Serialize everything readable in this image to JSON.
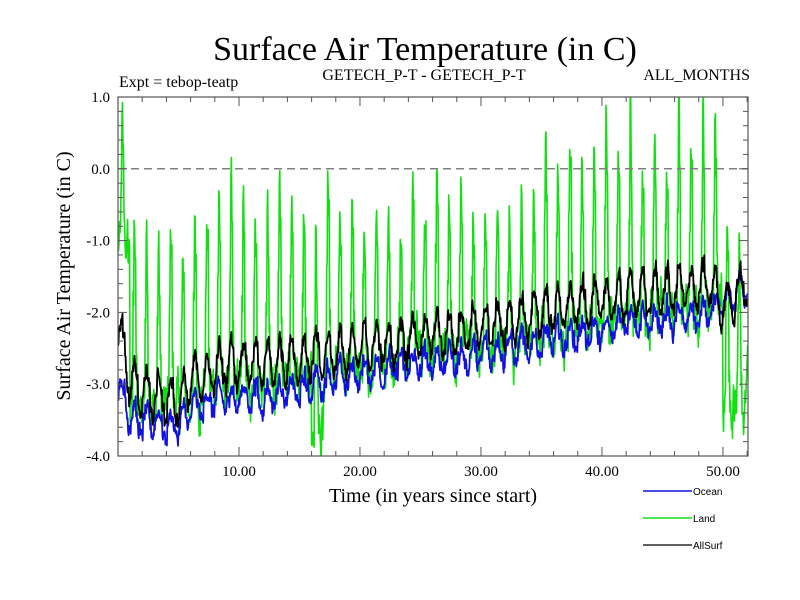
{
  "chart_data": {
    "type": "line",
    "title": "Surface Air Temperature (in C)",
    "subtitle_left": "Expt = tebop-teatp",
    "subtitle_center": "GETECH_P-T - GETECH_P-T",
    "subtitle_right": "ALL_MONTHS",
    "xlabel": "Time (in years since start)",
    "ylabel": "Surface Air Temperature (in C)",
    "xlim": [
      0,
      52.07
    ],
    "ylim": [
      -4.0,
      1.0
    ],
    "xticks": [
      10,
      20,
      30,
      40,
      50
    ],
    "xtick_labels": [
      "10.00",
      "20.00",
      "30.00",
      "40.00",
      "50.00"
    ],
    "xminor_step": 2,
    "yticks": [
      1.0,
      0.0,
      -1.0,
      -2.0,
      -3.0,
      -4.0
    ],
    "ytick_labels": [
      "1.0",
      "0.0",
      "-1.0",
      "-2.0",
      "-3.0",
      "-4.0"
    ],
    "yminor_step": 0.2,
    "reference_line": {
      "y": 0.0,
      "style": "dashed",
      "color": "#808080"
    },
    "legend": {
      "placement": "bottom-right"
    },
    "sampling": "monthly",
    "series": [
      {
        "name": "Ocean",
        "color": "#1010e0",
        "yearly_mean": [
          -2.95,
          -3.45,
          -3.55,
          -3.5,
          -3.6,
          -3.6,
          -3.35,
          -3.3,
          -3.2,
          -3.2,
          -3.2,
          -3.15,
          -3.2,
          -3.15,
          -3.1,
          -3.1,
          -3.0,
          -2.95,
          -2.9,
          -2.9,
          -2.85,
          -2.8,
          -2.8,
          -2.75,
          -2.75,
          -2.7,
          -2.7,
          -2.65,
          -2.65,
          -2.6,
          -2.55,
          -2.55,
          -2.5,
          -2.5,
          -2.45,
          -2.4,
          -2.35,
          -2.35,
          -2.3,
          -2.3,
          -2.25,
          -2.2,
          -2.1,
          -2.15,
          -2.15,
          -2.1,
          -2.1,
          -2.05,
          -2.05,
          -2.0,
          -1.9,
          -1.75,
          -1.6
        ],
        "seasonal_amplitude": 0.18
      },
      {
        "name": "Land",
        "color": "#10e010",
        "yearly_peak": [
          0.65,
          -0.5,
          -0.9,
          -1.1,
          -0.6,
          -1.3,
          -0.6,
          -0.6,
          -0.3,
          -0.2,
          -0.3,
          -0.5,
          -0.6,
          -0.4,
          -0.7,
          -0.4,
          -0.7,
          0.0,
          -0.8,
          -0.5,
          -0.6,
          -0.5,
          -0.5,
          -0.8,
          -0.3,
          -0.6,
          0.1,
          -0.5,
          -0.3,
          -0.6,
          -0.5,
          -0.5,
          -0.5,
          -0.4,
          -0.5,
          0.3,
          0.35,
          0.35,
          0.0,
          0.3,
          0.85,
          0.3,
          0.9,
          0.2,
          0.45,
          0.15,
          0.75,
          0.5,
          0.7,
          0.7,
          -0.6,
          -1.0,
          -0.1
        ],
        "yearly_trough": [
          -1.1,
          -3.4,
          -3.3,
          -3.3,
          -3.2,
          -3.3,
          -3.3,
          -3.0,
          -3.1,
          -3.0,
          -3.1,
          -3.0,
          -3.0,
          -2.9,
          -2.8,
          -2.8,
          -3.7,
          -2.9,
          -2.7,
          -2.8,
          -2.9,
          -2.6,
          -2.9,
          -2.7,
          -2.5,
          -2.7,
          -2.6,
          -2.6,
          -2.5,
          -2.5,
          -2.5,
          -2.4,
          -2.5,
          -2.4,
          -2.3,
          -2.3,
          -2.4,
          -2.2,
          -2.3,
          -2.2,
          -2.2,
          -2.1,
          -2.1,
          -2.1,
          -2.0,
          -2.1,
          -2.0,
          -2.0,
          -1.9,
          -1.8,
          -3.45,
          -3.25,
          -2.4
        ]
      },
      {
        "name": "AllSurf",
        "color": "#000000",
        "yearly_mean": [
          -2.2,
          -3.0,
          -3.1,
          -3.2,
          -3.2,
          -3.3,
          -2.95,
          -2.9,
          -2.8,
          -2.75,
          -2.75,
          -2.7,
          -2.75,
          -2.7,
          -2.65,
          -2.65,
          -2.6,
          -2.6,
          -2.55,
          -2.55,
          -2.5,
          -2.45,
          -2.45,
          -2.4,
          -2.35,
          -2.35,
          -2.3,
          -2.3,
          -2.25,
          -2.2,
          -2.2,
          -2.15,
          -2.15,
          -2.1,
          -2.05,
          -2.0,
          -1.95,
          -1.95,
          -1.9,
          -1.85,
          -1.85,
          -1.8,
          -1.75,
          -1.75,
          -1.75,
          -1.7,
          -1.7,
          -1.65,
          -1.65,
          -1.6,
          -1.9,
          -1.8,
          -1.55
        ],
        "seasonal_amplitude": 0.3
      }
    ]
  }
}
